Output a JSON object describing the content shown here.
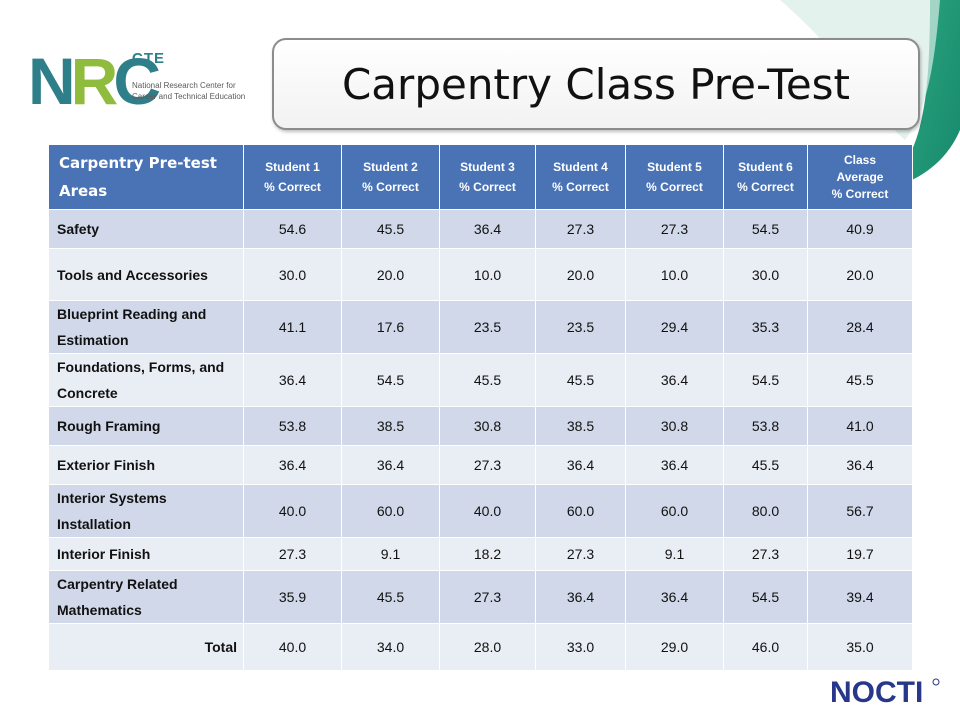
{
  "title": "Carpentry Class Pre-Test",
  "logo": {
    "nrc_prefix": "N",
    "nrc_r": "R",
    "nrc_suffix": "C",
    "cte": "CTE",
    "org_line1": "National Research Center for",
    "org_line2": "Career and Technical Education"
  },
  "nocti_logo": "NOCTI",
  "colors": {
    "header": "#4a73b6",
    "row_odd": "#d0d8e9",
    "row_even": "#e9edf4",
    "teal": "#2f7f8b"
  },
  "table": {
    "area_header": "Carpentry Pre-test Areas",
    "columns": [
      {
        "line1": "Student 1",
        "line2": "% Correct"
      },
      {
        "line1": "Student 2",
        "line2": "% Correct"
      },
      {
        "line1": "Student 3",
        "line2": "% Correct"
      },
      {
        "line1": "Student 4",
        "line2": "% Correct"
      },
      {
        "line1": "Student 5",
        "line2": "% Correct"
      },
      {
        "line1": "Student 6",
        "line2": "% Correct"
      }
    ],
    "avg_header": {
      "line1": "Class",
      "line2": "Average",
      "line3": "% Correct"
    },
    "rows": [
      {
        "area": "Safety",
        "values": [
          "54.6",
          "45.5",
          "36.4",
          "27.3",
          "27.3",
          "54.5",
          "40.9"
        ]
      },
      {
        "area": "Tools and Accessories",
        "values": [
          "30.0",
          "20.0",
          "10.0",
          "20.0",
          "10.0",
          "30.0",
          "20.0"
        ]
      },
      {
        "area": "Blueprint Reading and Estimation",
        "values": [
          "41.1",
          "17.6",
          "23.5",
          "23.5",
          "29.4",
          "35.3",
          "28.4"
        ]
      },
      {
        "area": "Foundations, Forms, and Concrete",
        "values": [
          "36.4",
          "54.5",
          "45.5",
          "45.5",
          "36.4",
          "54.5",
          "45.5"
        ]
      },
      {
        "area": "Rough Framing",
        "values": [
          "53.8",
          "38.5",
          "30.8",
          "38.5",
          "30.8",
          "53.8",
          "41.0"
        ]
      },
      {
        "area": "Exterior Finish",
        "values": [
          "36.4",
          "36.4",
          "27.3",
          "36.4",
          "36.4",
          "45.5",
          "36.4"
        ]
      },
      {
        "area": "Interior Systems Installation",
        "values": [
          "40.0",
          "60.0",
          "40.0",
          "60.0",
          "60.0",
          "80.0",
          "56.7"
        ]
      },
      {
        "area": "Interior Finish",
        "values": [
          "27.3",
          "9.1",
          "18.2",
          "27.3",
          "9.1",
          "27.3",
          "19.7"
        ]
      },
      {
        "area": "Carpentry Related Mathematics",
        "values": [
          "35.9",
          "45.5",
          "27.3",
          "36.4",
          "36.4",
          "54.5",
          "39.4"
        ]
      },
      {
        "area": "Total",
        "values": [
          "40.0",
          "34.0",
          "28.0",
          "33.0",
          "29.0",
          "46.0",
          "35.0"
        ]
      }
    ]
  }
}
